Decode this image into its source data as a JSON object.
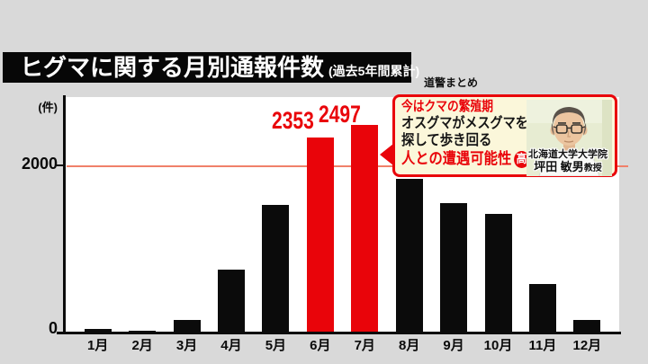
{
  "header": {
    "title": "ヒグマに関する月別通報件数",
    "subtitle": "(過去5年間累計)",
    "source": "道警まとめ"
  },
  "chart_data": {
    "type": "bar",
    "title": "ヒグマに関する月別通報件数（過去5年間累計）",
    "unit_label": "(件)",
    "categories": [
      "1月",
      "2月",
      "3月",
      "4月",
      "5月",
      "6月",
      "7月",
      "8月",
      "9月",
      "10月",
      "11月",
      "12月"
    ],
    "values": [
      30,
      15,
      140,
      750,
      1530,
      2353,
      2497,
      1850,
      1550,
      1420,
      580,
      140
    ],
    "highlight_indices": [
      5,
      6
    ],
    "data_labels": [
      {
        "month": "6月",
        "value": "2353"
      },
      {
        "month": "7月",
        "value": "2497"
      }
    ],
    "ylim": [
      0,
      2600
    ],
    "yticks_display": [
      "0",
      "2000"
    ],
    "gridline_value": 2000,
    "bar_color": "#0b0b0b",
    "highlight_color": "#e9040a",
    "gridline_color": "#f0806a",
    "legend": "none",
    "grid": "single horizontal line at 2000"
  },
  "callout": {
    "line1": "今はクマの繁殖期",
    "line2": "オスグマがメスグマを",
    "line3": "探して歩き回る",
    "line4": "人との遭遇可能性",
    "badge": "高",
    "expert_affiliation": "北海道大学大学院",
    "expert_name": "坪田 敏男",
    "expert_title": "教授"
  }
}
